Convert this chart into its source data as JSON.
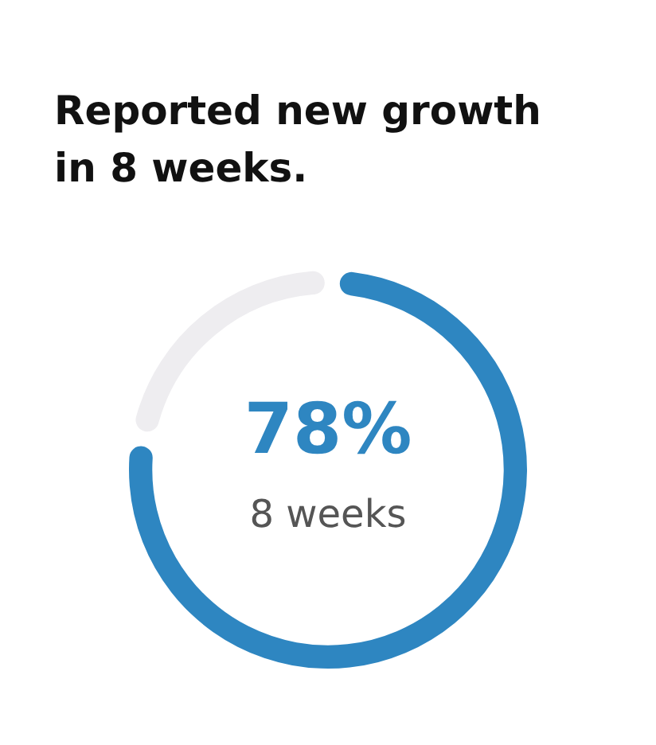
{
  "chart_data": {
    "type": "donut",
    "title": "Reported new growth in 8 weeks.",
    "categories": [
      null,
      null
    ],
    "values": [
      78,
      22
    ],
    "colors": [
      "#2e86c1",
      "#eeedf0"
    ],
    "value_labels": [
      "78%",
      null
    ],
    "annotations": [
      "8 weeks"
    ],
    "legend": false
  }
}
